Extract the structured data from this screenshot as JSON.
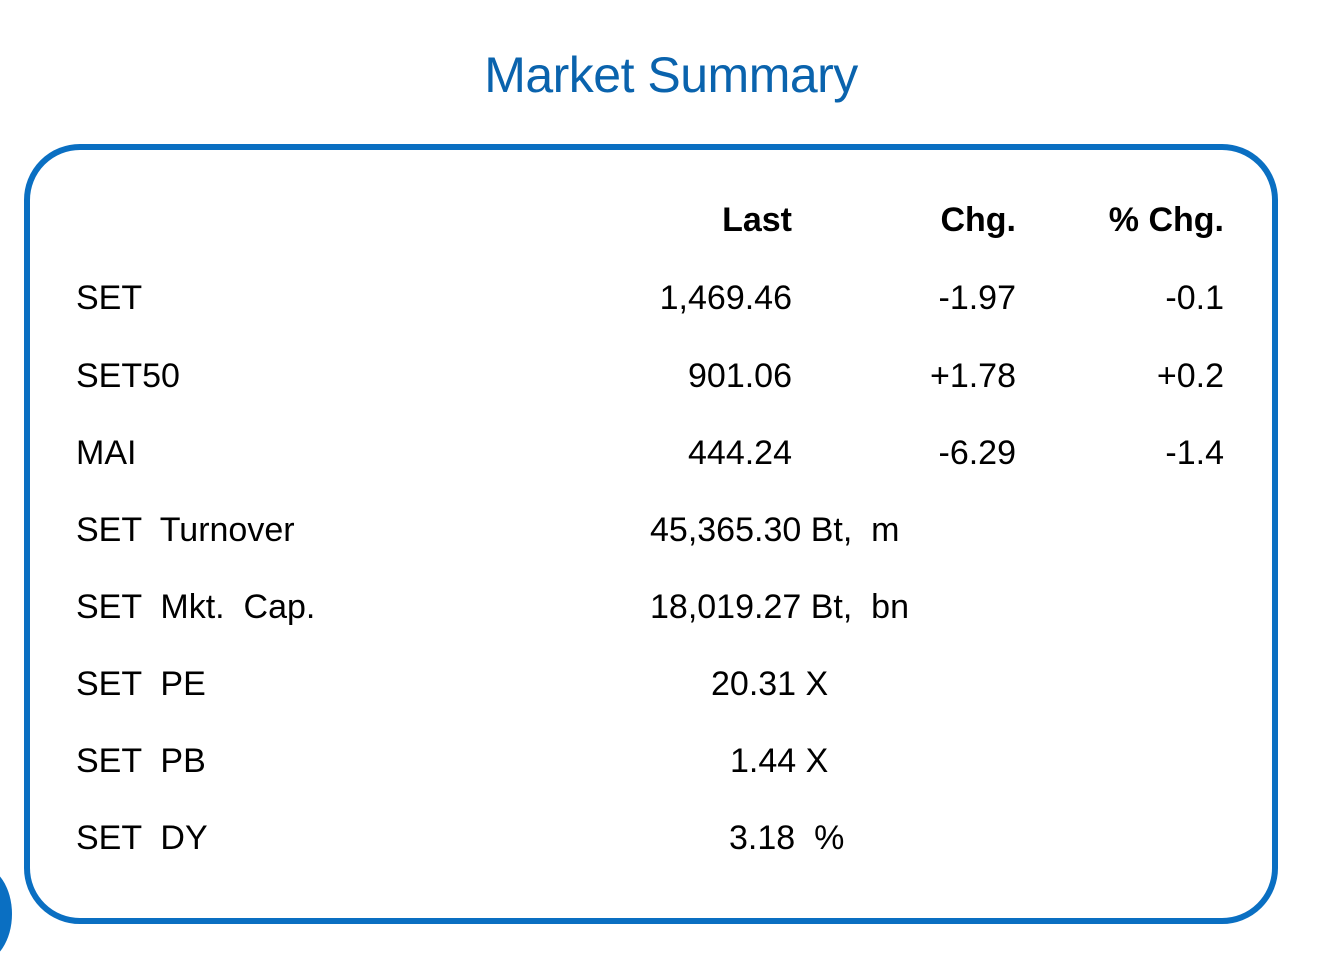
{
  "title": "Market Summary",
  "headers": {
    "last": "Last",
    "chg": "Chg.",
    "pct_chg": "% Chg."
  },
  "indices": [
    {
      "name": "SET",
      "last": "1,469.46",
      "chg": "-1.97",
      "pct_chg": "-0.1"
    },
    {
      "name": "SET50",
      "last": "901.06",
      "chg": "+1.78",
      "pct_chg": "+0.2"
    },
    {
      "name": "MAI",
      "last": "444.24",
      "chg": "-6.29",
      "pct_chg": "-1.4"
    }
  ],
  "stats": [
    {
      "name": "SET  Turnover",
      "value": "45,365.30 Bt,  m"
    },
    {
      "name": "SET  Mkt.  Cap.",
      "value": "18,019.27 Bt,  bn"
    },
    {
      "name": "SET  PE",
      "value": "20.31 X"
    },
    {
      "name": "SET  PB",
      "value": "1.44 X"
    },
    {
      "name": "SET  DY",
      "value": "3.18  %"
    }
  ],
  "colors": {
    "title": "#0a63ad",
    "border": "#0a6fc2"
  }
}
